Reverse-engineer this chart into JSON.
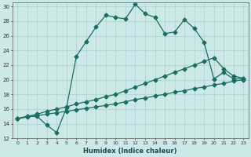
{
  "xlabel": "Humidex (Indice chaleur)",
  "ylabel": "",
  "bg_color": "#cce8e8",
  "line_color": "#1a6e5e",
  "grid_color": "#aad0d0",
  "xlim": [
    -0.5,
    23.5
  ],
  "ylim": [
    12,
    30.5
  ],
  "xticks": [
    0,
    1,
    2,
    3,
    4,
    5,
    6,
    7,
    8,
    9,
    10,
    11,
    12,
    13,
    14,
    15,
    16,
    17,
    18,
    19,
    20,
    21,
    22,
    23
  ],
  "yticks": [
    12,
    14,
    16,
    18,
    20,
    22,
    24,
    26,
    28,
    30
  ],
  "series1_x": [
    0,
    1,
    2,
    3,
    4,
    5,
    6,
    7,
    8,
    9,
    10,
    11,
    12,
    13,
    14,
    15,
    16,
    17,
    18,
    19,
    20,
    21,
    22,
    23
  ],
  "series1_y": [
    14.7,
    15.0,
    15.0,
    13.8,
    12.8,
    16.2,
    23.2,
    25.2,
    27.2,
    28.8,
    28.5,
    28.3,
    30.3,
    29.0,
    28.5,
    26.3,
    26.5,
    28.2,
    27.0,
    25.1,
    20.1,
    21.0,
    20.1,
    20.2
  ],
  "series2_x": [
    0,
    1,
    2,
    3,
    4,
    5,
    6,
    7,
    8,
    9,
    10,
    11,
    12,
    13,
    14,
    15,
    16,
    17,
    18,
    19,
    20,
    21,
    22,
    23
  ],
  "series2_y": [
    14.7,
    15.0,
    15.3,
    15.7,
    16.0,
    16.3,
    16.7,
    17.0,
    17.3,
    17.7,
    18.0,
    18.5,
    19.0,
    19.5,
    20.0,
    20.5,
    21.0,
    21.5,
    22.0,
    22.5,
    23.0,
    21.5,
    20.5,
    20.2
  ],
  "series3_x": [
    0,
    1,
    2,
    3,
    4,
    5,
    6,
    7,
    8,
    9,
    10,
    11,
    12,
    13,
    14,
    15,
    16,
    17,
    18,
    19,
    20,
    21,
    22,
    23
  ],
  "series3_y": [
    14.7,
    14.9,
    15.1,
    15.3,
    15.5,
    15.7,
    15.9,
    16.1,
    16.3,
    16.5,
    16.7,
    17.0,
    17.3,
    17.5,
    17.8,
    18.0,
    18.3,
    18.5,
    18.8,
    19.0,
    19.3,
    19.5,
    19.8,
    20.0
  ],
  "marker": "D",
  "markersize": 2.5,
  "linewidth": 0.9
}
